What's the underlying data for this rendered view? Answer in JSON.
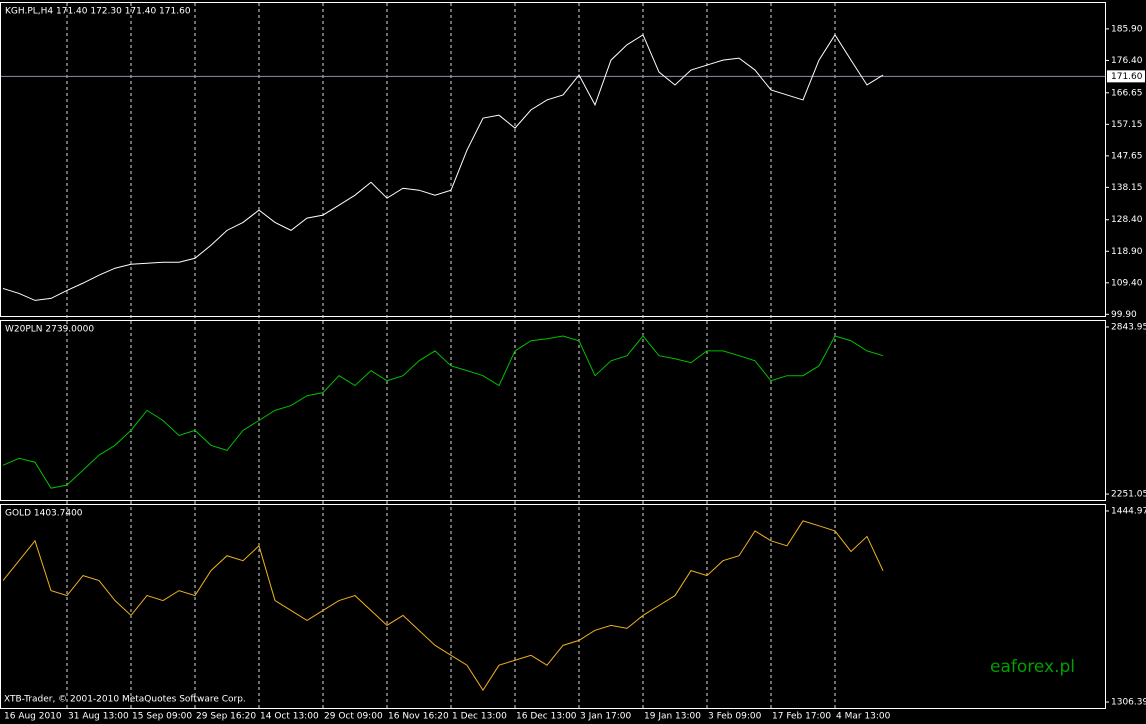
{
  "chart_data": [
    {
      "type": "line",
      "title": "KGH.PL,H4 171.40 172.30 171.40 171.60",
      "series": [
        {
          "color": "#ffffff",
          "values": [
            107.7,
            106.2,
            104.1,
            104.7,
            107.1,
            109.3,
            111.7,
            113.8,
            115.0,
            115.3,
            115.6,
            115.6,
            116.8,
            120.7,
            125.2,
            127.6,
            131.3,
            127.6,
            125.2,
            128.9,
            129.8,
            132.8,
            135.8,
            139.7,
            134.9,
            137.9,
            137.3,
            135.8,
            137.3,
            149.4,
            159.0,
            159.9,
            156.0,
            161.5,
            164.5,
            166.0,
            172.0,
            163.0,
            176.5,
            181.1,
            184.1,
            172.9,
            169.0,
            173.5,
            175.0,
            176.5,
            177.1,
            173.5,
            167.5,
            166.0,
            164.5,
            176.5,
            184.1,
            176.5,
            169.0,
            172.0
          ]
        }
      ],
      "price_line": {
        "value": 171.6,
        "label": "171.60"
      },
      "ylim": [
        99.4,
        193.7
      ],
      "yticks": [
        {
          "value": 185.9,
          "label": "185.90"
        },
        {
          "value": 176.4,
          "label": "176.40"
        },
        {
          "value": 166.65,
          "label": "166.65"
        },
        {
          "value": 157.15,
          "label": "157.15"
        },
        {
          "value": 147.65,
          "label": "147.65"
        },
        {
          "value": 138.15,
          "label": "138.15"
        },
        {
          "value": 128.4,
          "label": "128.40"
        },
        {
          "value": 118.9,
          "label": "118.90"
        },
        {
          "value": 109.4,
          "label": "109.40"
        },
        {
          "value": 99.9,
          "label": "99.90"
        }
      ]
    },
    {
      "type": "line",
      "title": "W20PLN 2739.0000",
      "series": [
        {
          "color": "#00c000",
          "values": [
            2353,
            2378,
            2364,
            2272,
            2283,
            2336,
            2389,
            2424,
            2477,
            2548,
            2512,
            2459,
            2477,
            2424,
            2406,
            2477,
            2512,
            2548,
            2565,
            2600,
            2611,
            2671,
            2636,
            2689,
            2653,
            2671,
            2724,
            2759,
            2706,
            2689,
            2671,
            2636,
            2759,
            2795,
            2802,
            2812,
            2795,
            2671,
            2724,
            2742,
            2812,
            2742,
            2731,
            2717,
            2759,
            2759,
            2742,
            2724,
            2653,
            2671,
            2671,
            2706,
            2812,
            2795,
            2759,
            2742
          ]
        }
      ],
      "ylim": [
        2229.9,
        2865.1
      ],
      "yticks": [
        2843.95,
        2251.05
      ]
    },
    {
      "type": "line",
      "title": "GOLD 1403.7400",
      "categories": [
        "16 Aug 2010",
        null,
        null,
        null,
        "31 Aug 13:00",
        null,
        null,
        null,
        "15 Sep 09:00",
        null,
        null,
        null,
        "29 Sep 16:20",
        null,
        null,
        null,
        "14 Oct 13:00",
        null,
        null,
        null,
        "29 Oct 09:00",
        null,
        null,
        null,
        "16 Nov 16:20",
        null,
        null,
        null,
        "1 Dec 13:00",
        null,
        null,
        null,
        "16 Dec 13:00",
        null,
        null,
        null,
        "3 Jan 17:00",
        null,
        null,
        null,
        "19 Jan 13:00",
        null,
        null,
        null,
        "3 Feb 09:00",
        null,
        null,
        null,
        "17 Feb 17:00",
        null,
        null,
        null,
        "4 Mar 13:00",
        null,
        null,
        null
      ],
      "series": [
        {
          "color": "#f0b020",
          "values": [
            1394.5,
            1408.9,
            1423.3,
            1387.2,
            1383.6,
            1398.1,
            1394.5,
            1380.0,
            1369.2,
            1383.6,
            1380.0,
            1387.2,
            1383.6,
            1401.7,
            1412.5,
            1408.9,
            1419.7,
            1380.0,
            1372.8,
            1365.6,
            1372.8,
            1380.0,
            1383.6,
            1372.8,
            1362.0,
            1369.2,
            1358.4,
            1347.5,
            1340.3,
            1333.1,
            1315.0,
            1333.1,
            1336.7,
            1340.3,
            1333.1,
            1347.5,
            1351.1,
            1358.4,
            1362.0,
            1359.8,
            1369.2,
            1376.4,
            1383.6,
            1401.7,
            1398.1,
            1408.9,
            1412.5,
            1430.5,
            1423.3,
            1419.7,
            1437.8,
            1434.2,
            1430.5,
            1415.6,
            1426.5,
            1401.7
          ]
        }
      ],
      "ylim": [
        1302.06,
        1449.3
      ],
      "yticks": [
        1444.97,
        1306.39
      ]
    }
  ],
  "copyright": "XTB-Trader, © 2001-2010 MetaQuotes Software Corp.",
  "watermark": "eaforex.pl"
}
